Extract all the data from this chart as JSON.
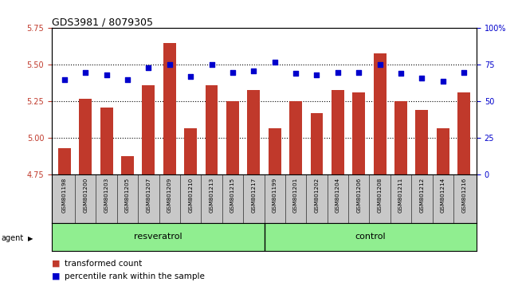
{
  "title": "GDS3981 / 8079305",
  "samples": [
    "GSM801198",
    "GSM801200",
    "GSM801203",
    "GSM801205",
    "GSM801207",
    "GSM801209",
    "GSM801210",
    "GSM801213",
    "GSM801215",
    "GSM801217",
    "GSM801199",
    "GSM801201",
    "GSM801202",
    "GSM801204",
    "GSM801206",
    "GSM801208",
    "GSM801211",
    "GSM801212",
    "GSM801214",
    "GSM801216"
  ],
  "bar_values": [
    4.93,
    5.27,
    5.21,
    4.88,
    5.36,
    5.65,
    5.07,
    5.36,
    5.25,
    5.33,
    5.07,
    5.25,
    5.17,
    5.33,
    5.31,
    5.58,
    5.25,
    5.19,
    5.07,
    5.31
  ],
  "percentile_values": [
    65,
    70,
    68,
    65,
    73,
    75,
    67,
    75,
    70,
    71,
    77,
    69,
    68,
    70,
    70,
    75,
    69,
    66,
    64,
    70
  ],
  "bar_color": "#c0392b",
  "dot_color": "#0000cc",
  "ylim_left": [
    4.75,
    5.75
  ],
  "ylim_right": [
    0,
    100
  ],
  "yticks_left": [
    4.75,
    5.0,
    5.25,
    5.5,
    5.75
  ],
  "yticks_right": [
    0,
    25,
    50,
    75,
    100
  ],
  "ytick_labels_right": [
    "0",
    "25",
    "50",
    "75",
    "100%"
  ],
  "grid_values": [
    5.0,
    5.25,
    5.5
  ],
  "agent_label": "agent",
  "legend_bar_label": "transformed count",
  "legend_dot_label": "percentile rank within the sample",
  "bar_width": 0.6,
  "plot_bg_color": "#ffffff",
  "label_bg_color": "#c8c8c8",
  "group_bg_color": "#90ee90",
  "resveratrol_label": "resveratrol",
  "control_label": "control"
}
